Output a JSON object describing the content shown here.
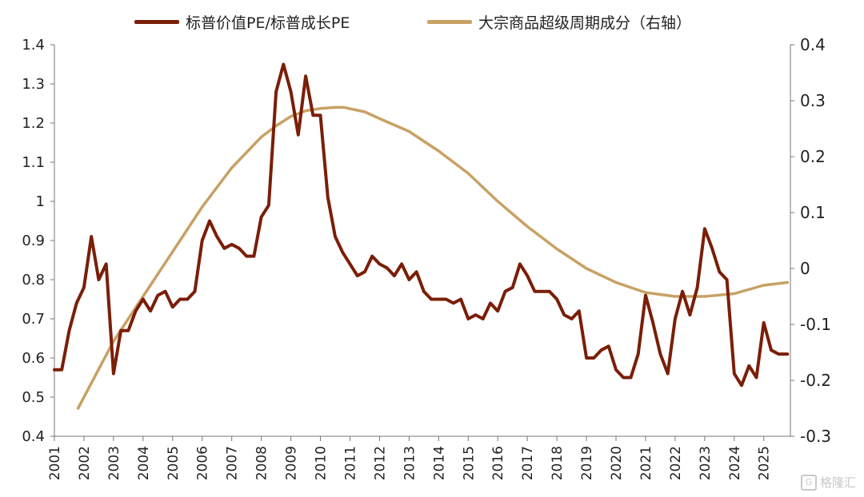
{
  "colors": {
    "series1": "#7a1e08",
    "series2": "#c8a165",
    "axis": "#777777",
    "text": "#222222"
  },
  "watermark": {
    "text": "格隆汇",
    "icon": "G"
  },
  "chart_data": {
    "type": "line",
    "grid": false,
    "legend_position": "top",
    "x_tick_labels": [
      "2001",
      "2002",
      "2003",
      "2004",
      "2005",
      "2006",
      "2007",
      "2008",
      "2009",
      "2010",
      "2011",
      "2012",
      "2013",
      "2014",
      "2015",
      "2016",
      "2017",
      "2018",
      "2019",
      "2020",
      "2021",
      "2022",
      "2023",
      "2024",
      "2025"
    ],
    "xlim": [
      2001,
      2025.9
    ],
    "y_left": {
      "ylim": [
        0.4,
        1.4
      ],
      "ticks": [
        "0.4",
        "0.5",
        "0.6",
        "0.7",
        "0.8",
        "0.9",
        "1",
        "1.1",
        "1.2",
        "1.3",
        "1.4"
      ]
    },
    "y_right": {
      "ylim": [
        -0.3,
        0.4
      ],
      "ticks": [
        "0.4",
        "0.3",
        "0.2",
        "0.1",
        "0",
        "-0.1",
        "-0.2",
        "-0.3"
      ]
    },
    "series": [
      {
        "name": "标普价值PE/标普成长PE",
        "axis": "left",
        "points": [
          [
            2001.0,
            0.57
          ],
          [
            2001.25,
            0.57
          ],
          [
            2001.5,
            0.67
          ],
          [
            2001.75,
            0.74
          ],
          [
            2002.0,
            0.78
          ],
          [
            2002.25,
            0.91
          ],
          [
            2002.5,
            0.8
          ],
          [
            2002.75,
            0.84
          ],
          [
            2003.0,
            0.56
          ],
          [
            2003.25,
            0.67
          ],
          [
            2003.5,
            0.67
          ],
          [
            2003.75,
            0.72
          ],
          [
            2004.0,
            0.75
          ],
          [
            2004.25,
            0.72
          ],
          [
            2004.5,
            0.76
          ],
          [
            2004.75,
            0.77
          ],
          [
            2005.0,
            0.73
          ],
          [
            2005.25,
            0.75
          ],
          [
            2005.5,
            0.75
          ],
          [
            2005.75,
            0.77
          ],
          [
            2006.0,
            0.9
          ],
          [
            2006.25,
            0.95
          ],
          [
            2006.5,
            0.91
          ],
          [
            2006.75,
            0.88
          ],
          [
            2007.0,
            0.89
          ],
          [
            2007.25,
            0.88
          ],
          [
            2007.5,
            0.86
          ],
          [
            2007.75,
            0.86
          ],
          [
            2008.0,
            0.96
          ],
          [
            2008.25,
            0.99
          ],
          [
            2008.5,
            1.28
          ],
          [
            2008.75,
            1.35
          ],
          [
            2009.0,
            1.28
          ],
          [
            2009.25,
            1.17
          ],
          [
            2009.5,
            1.32
          ],
          [
            2009.75,
            1.22
          ],
          [
            2010.0,
            1.22
          ],
          [
            2010.25,
            1.01
          ],
          [
            2010.5,
            0.91
          ],
          [
            2010.75,
            0.87
          ],
          [
            2011.0,
            0.84
          ],
          [
            2011.25,
            0.81
          ],
          [
            2011.5,
            0.82
          ],
          [
            2011.75,
            0.86
          ],
          [
            2012.0,
            0.84
          ],
          [
            2012.25,
            0.83
          ],
          [
            2012.5,
            0.81
          ],
          [
            2012.75,
            0.84
          ],
          [
            2013.0,
            0.8
          ],
          [
            2013.25,
            0.82
          ],
          [
            2013.5,
            0.77
          ],
          [
            2013.75,
            0.75
          ],
          [
            2014.0,
            0.75
          ],
          [
            2014.25,
            0.75
          ],
          [
            2014.5,
            0.74
          ],
          [
            2014.75,
            0.75
          ],
          [
            2015.0,
            0.7
          ],
          [
            2015.25,
            0.71
          ],
          [
            2015.5,
            0.7
          ],
          [
            2015.75,
            0.74
          ],
          [
            2016.0,
            0.72
          ],
          [
            2016.25,
            0.77
          ],
          [
            2016.5,
            0.78
          ],
          [
            2016.75,
            0.84
          ],
          [
            2017.0,
            0.81
          ],
          [
            2017.25,
            0.77
          ],
          [
            2017.5,
            0.77
          ],
          [
            2017.75,
            0.77
          ],
          [
            2018.0,
            0.75
          ],
          [
            2018.25,
            0.71
          ],
          [
            2018.5,
            0.7
          ],
          [
            2018.75,
            0.72
          ],
          [
            2019.0,
            0.6
          ],
          [
            2019.25,
            0.6
          ],
          [
            2019.5,
            0.62
          ],
          [
            2019.75,
            0.63
          ],
          [
            2020.0,
            0.57
          ],
          [
            2020.25,
            0.55
          ],
          [
            2020.5,
            0.55
          ],
          [
            2020.75,
            0.61
          ],
          [
            2021.0,
            0.76
          ],
          [
            2021.25,
            0.69
          ],
          [
            2021.5,
            0.61
          ],
          [
            2021.75,
            0.56
          ],
          [
            2022.0,
            0.7
          ],
          [
            2022.25,
            0.77
          ],
          [
            2022.5,
            0.71
          ],
          [
            2022.75,
            0.78
          ],
          [
            2023.0,
            0.93
          ],
          [
            2023.25,
            0.88
          ],
          [
            2023.5,
            0.82
          ],
          [
            2023.75,
            0.8
          ],
          [
            2024.0,
            0.56
          ],
          [
            2024.25,
            0.53
          ],
          [
            2024.5,
            0.58
          ],
          [
            2024.75,
            0.55
          ],
          [
            2025.0,
            0.69
          ],
          [
            2025.25,
            0.62
          ],
          [
            2025.5,
            0.61
          ],
          [
            2025.8,
            0.61
          ]
        ]
      },
      {
        "name": "大宗商品超级周期成分（右轴）",
        "axis": "right",
        "points": [
          [
            2001.8,
            -0.25
          ],
          [
            2002.5,
            -0.18
          ],
          [
            2003.0,
            -0.13
          ],
          [
            2003.5,
            -0.09
          ],
          [
            2004.0,
            -0.05
          ],
          [
            2005.0,
            0.03
          ],
          [
            2006.0,
            0.11
          ],
          [
            2007.0,
            0.18
          ],
          [
            2008.0,
            0.235
          ],
          [
            2008.5,
            0.255
          ],
          [
            2009.0,
            0.272
          ],
          [
            2009.5,
            0.282
          ],
          [
            2010.0,
            0.286
          ],
          [
            2010.5,
            0.288
          ],
          [
            2010.8,
            0.288
          ],
          [
            2011.5,
            0.28
          ],
          [
            2012.0,
            0.268
          ],
          [
            2013.0,
            0.245
          ],
          [
            2014.0,
            0.21
          ],
          [
            2015.0,
            0.17
          ],
          [
            2016.0,
            0.12
          ],
          [
            2017.0,
            0.075
          ],
          [
            2018.0,
            0.035
          ],
          [
            2019.0,
            0.0
          ],
          [
            2020.0,
            -0.025
          ],
          [
            2021.0,
            -0.043
          ],
          [
            2022.0,
            -0.05
          ],
          [
            2023.0,
            -0.05
          ],
          [
            2024.0,
            -0.045
          ],
          [
            2025.0,
            -0.03
          ],
          [
            2025.8,
            -0.025
          ]
        ]
      }
    ]
  }
}
